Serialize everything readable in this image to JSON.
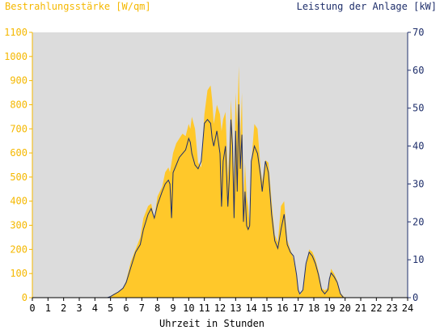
{
  "chart_data": {
    "type": "area",
    "ylabel_left": "Bestrahlungsstärke [W/qm]",
    "ylabel_right": "Leistung der Anlage [kW]",
    "xlabel": "Uhrzeit in Stunden",
    "xlim": [
      0,
      24
    ],
    "ylim_left": [
      0,
      1100
    ],
    "ylim_right": [
      0,
      70
    ],
    "x_ticks": [
      "0",
      "1",
      "2",
      "3",
      "4",
      "5",
      "6",
      "7",
      "8",
      "9",
      "10",
      "11",
      "12",
      "13",
      "14",
      "15",
      "16",
      "17",
      "18",
      "19",
      "20",
      "21",
      "22",
      "23",
      "24"
    ],
    "y_ticks_left": [
      "0",
      "100",
      "200",
      "300",
      "400",
      "500",
      "600",
      "700",
      "800",
      "900",
      "1000",
      "1100"
    ],
    "y_ticks_right": [
      "0",
      "10",
      "20",
      "30",
      "40",
      "50",
      "60",
      "70"
    ],
    "grid": false,
    "colors": {
      "irradiance": "#ffc82a",
      "power": "#1f2f6b",
      "plot_bg": "#dcdcdc",
      "left_axis": "#f5b800",
      "right_axis": "#1f2f6b"
    },
    "series": [
      {
        "name": "Bestrahlungsstärke [W/qm]",
        "axis": "left",
        "x": [
          0,
          4.8,
          5.0,
          5.2,
          5.5,
          5.8,
          6.0,
          6.3,
          6.6,
          6.9,
          7.1,
          7.4,
          7.6,
          7.8,
          8.0,
          8.3,
          8.5,
          8.7,
          8.8,
          8.9,
          9.0,
          9.2,
          9.4,
          9.6,
          9.8,
          10.0,
          10.1,
          10.2,
          10.4,
          10.6,
          10.8,
          11.0,
          11.2,
          11.4,
          11.5,
          11.6,
          11.8,
          12.0,
          12.1,
          12.2,
          12.35,
          12.5,
          12.6,
          12.7,
          12.8,
          12.9,
          13.0,
          13.1,
          13.2,
          13.3,
          13.4,
          13.5,
          13.6,
          13.7,
          13.8,
          13.9,
          14.0,
          14.2,
          14.4,
          14.6,
          14.7,
          14.9,
          15.1,
          15.3,
          15.5,
          15.7,
          15.9,
          16.1,
          16.3,
          16.5,
          16.7,
          16.9,
          17.0,
          17.1,
          17.3,
          17.5,
          17.7,
          17.9,
          18.1,
          18.3,
          18.5,
          18.7,
          18.9,
          19.0,
          19.1,
          19.3,
          19.5,
          19.7,
          19.9,
          20.0,
          20.2,
          24
        ],
        "values": [
          0,
          0,
          5,
          15,
          25,
          40,
          70,
          150,
          200,
          250,
          330,
          380,
          390,
          330,
          420,
          460,
          520,
          540,
          520,
          560,
          600,
          640,
          660,
          680,
          670,
          720,
          700,
          750,
          700,
          560,
          540,
          760,
          860,
          880,
          820,
          720,
          800,
          760,
          690,
          740,
          770,
          500,
          610,
          820,
          680,
          470,
          850,
          710,
          960,
          650,
          850,
          400,
          560,
          420,
          380,
          300,
          560,
          720,
          700,
          530,
          480,
          570,
          560,
          400,
          260,
          230,
          380,
          400,
          240,
          200,
          160,
          90,
          30,
          10,
          30,
          130,
          200,
          190,
          160,
          110,
          40,
          30,
          40,
          80,
          120,
          100,
          70,
          20,
          5,
          0,
          0,
          0
        ]
      },
      {
        "name": "Leistung der Anlage [kW]",
        "axis": "right",
        "x": [
          0,
          4.8,
          5.0,
          5.2,
          5.5,
          5.8,
          6.0,
          6.3,
          6.6,
          6.9,
          7.1,
          7.4,
          7.6,
          7.8,
          8.0,
          8.3,
          8.5,
          8.7,
          8.8,
          8.9,
          9.0,
          9.2,
          9.4,
          9.6,
          9.8,
          10.0,
          10.1,
          10.2,
          10.4,
          10.6,
          10.8,
          11.0,
          11.2,
          11.4,
          11.5,
          11.6,
          11.8,
          12.0,
          12.1,
          12.2,
          12.35,
          12.5,
          12.6,
          12.7,
          12.8,
          12.9,
          13.0,
          13.1,
          13.2,
          13.3,
          13.4,
          13.5,
          13.6,
          13.7,
          13.8,
          13.9,
          14.0,
          14.2,
          14.4,
          14.6,
          14.7,
          14.9,
          15.1,
          15.3,
          15.5,
          15.7,
          15.9,
          16.1,
          16.3,
          16.5,
          16.7,
          16.9,
          17.0,
          17.1,
          17.3,
          17.5,
          17.7,
          17.9,
          18.1,
          18.3,
          18.5,
          18.7,
          18.9,
          19.0,
          19.1,
          19.3,
          19.5,
          19.7,
          19.9,
          20.0,
          20.2,
          24
        ],
        "values": [
          0,
          0,
          0.3,
          0.8,
          1.5,
          2.5,
          4,
          8,
          12,
          14,
          18,
          22,
          23.5,
          21,
          24.5,
          28,
          30,
          31,
          30,
          21,
          33,
          35,
          37,
          38,
          39,
          42,
          41,
          38,
          35,
          34,
          36,
          46,
          47,
          46,
          42,
          40,
          44,
          38,
          24,
          36,
          40,
          24,
          32,
          47,
          40,
          21,
          44,
          28,
          51,
          34,
          43,
          20,
          28,
          19,
          18,
          19,
          36,
          40,
          38,
          32,
          28,
          36,
          33,
          22,
          15,
          13,
          18,
          22,
          14,
          12,
          11,
          6,
          2,
          1,
          2,
          9,
          12,
          11,
          9,
          6,
          2,
          1,
          2,
          5,
          6.5,
          5.5,
          4,
          1,
          0,
          0,
          0,
          0
        ]
      }
    ]
  }
}
